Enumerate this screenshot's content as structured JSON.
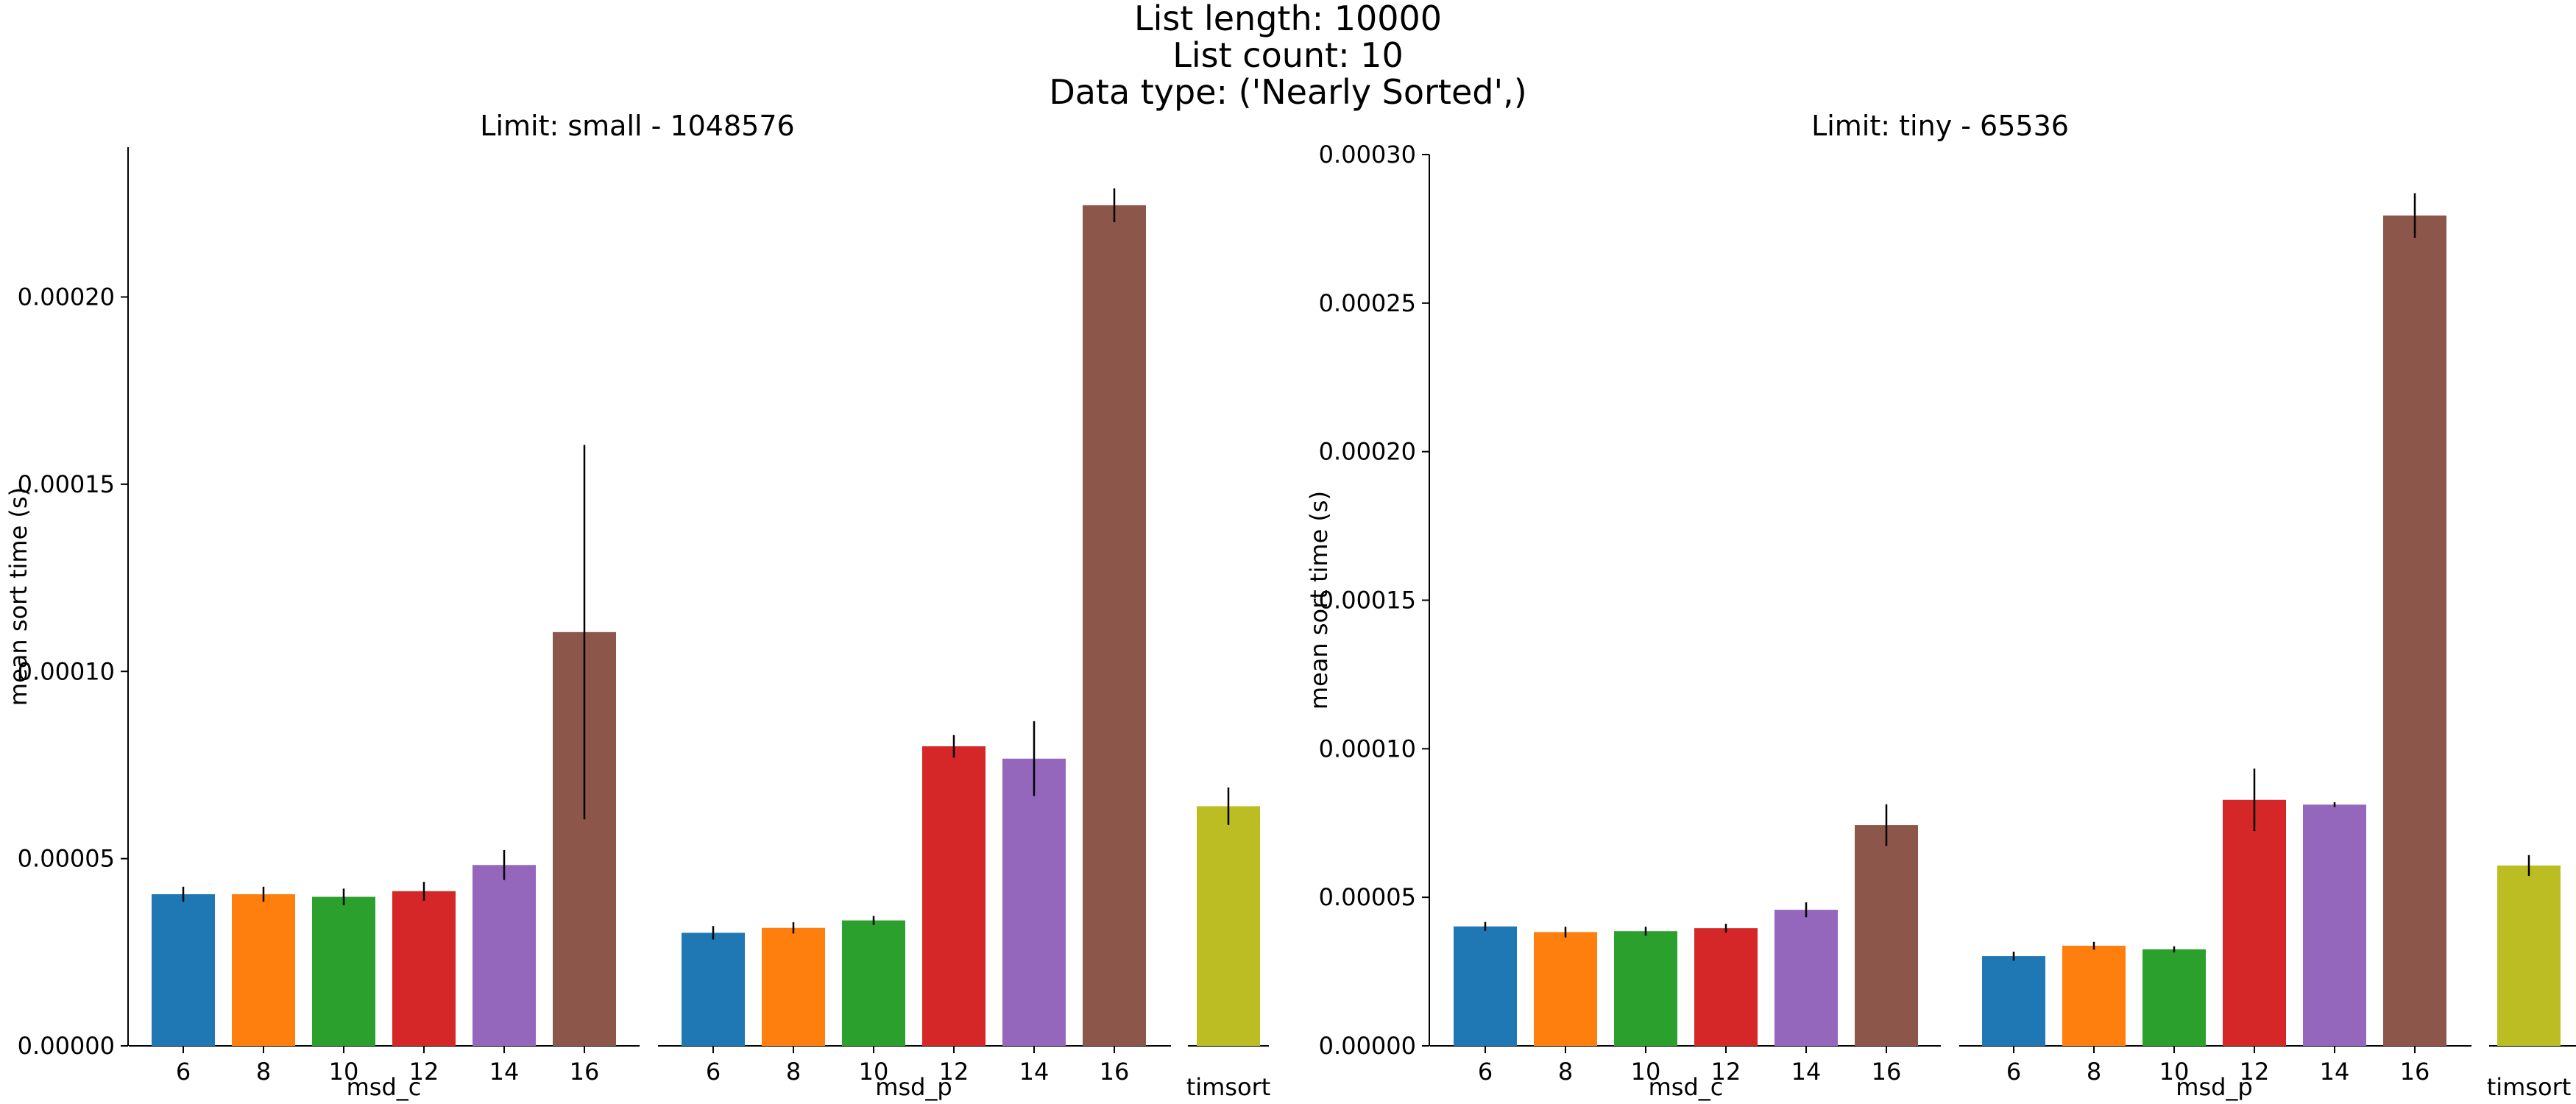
{
  "figure": {
    "title_lines": [
      "List length: 10000",
      "List count: 10",
      "Data type: ('Nearly Sorted',)"
    ]
  },
  "colors": {
    "6": "#1f77b4",
    "8": "#ff7f0e",
    "10": "#2ca02c",
    "12": "#d62728",
    "14": "#9467bd",
    "16": "#8c564b",
    "timsort": "#bcbd22"
  },
  "chart_data": [
    {
      "type": "bar",
      "title": "Limit: small - 1048576",
      "ylabel": "mean sort time (s)",
      "ylim": [
        0,
        0.00024
      ],
      "yticks": [
        0.0,
        5e-05,
        0.0001,
        0.00015,
        0.0002
      ],
      "ytick_labels": [
        "0.00000",
        "0.00005",
        "0.00010",
        "0.00015",
        "0.00020"
      ],
      "groups": [
        {
          "name": "msd_c",
          "categories": [
            "6",
            "8",
            "10",
            "12",
            "14",
            "16"
          ],
          "values": [
            4.05e-05,
            4.05e-05,
            3.98e-05,
            4.13e-05,
            4.83e-05,
            0.0001105
          ],
          "errors": [
            2e-06,
            2e-06,
            2.2e-06,
            2.5e-06,
            4e-06,
            5e-05
          ]
        },
        {
          "name": "msd_p",
          "categories": [
            "6",
            "8",
            "10",
            "12",
            "14",
            "16"
          ],
          "values": [
            3.02e-05,
            3.15e-05,
            3.35e-05,
            8e-05,
            7.67e-05,
            0.0002245
          ],
          "errors": [
            1.8e-06,
            1.5e-06,
            1.2e-06,
            3e-06,
            1e-05,
            4.5e-06
          ]
        },
        {
          "name": "timsort",
          "categories": [
            ""
          ],
          "values": [
            6.4e-05
          ],
          "errors": [
            5e-06
          ]
        }
      ]
    },
    {
      "type": "bar",
      "title": "Limit: tiny - 65536",
      "ylabel": "mean sort time (s)",
      "ylim": [
        0,
        0.0003
      ],
      "yticks": [
        0.0,
        5e-05,
        0.0001,
        0.00015,
        0.0002,
        0.00025,
        0.0003
      ],
      "ytick_labels": [
        "0.00000",
        "0.00005",
        "0.00010",
        "0.00015",
        "0.00020",
        "0.00025",
        "0.00030"
      ],
      "groups": [
        {
          "name": "msd_c",
          "categories": [
            "6",
            "8",
            "10",
            "12",
            "14",
            "16"
          ],
          "values": [
            4.02e-05,
            3.83e-05,
            3.86e-05,
            3.96e-05,
            4.58e-05,
            7.43e-05
          ],
          "errors": [
            1.5e-06,
            1.8e-06,
            1.5e-06,
            1.5e-06,
            2.5e-06,
            7e-06
          ]
        },
        {
          "name": "msd_p",
          "categories": [
            "6",
            "8",
            "10",
            "12",
            "14",
            "16"
          ],
          "values": [
            3.02e-05,
            3.37e-05,
            3.25e-05,
            8.28e-05,
            8.12e-05,
            0.0002795
          ],
          "errors": [
            1.5e-06,
            1.3e-06,
            1e-06,
            1.05e-05,
            8e-07,
            7.5e-06
          ]
        },
        {
          "name": "timsort",
          "categories": [
            ""
          ],
          "values": [
            6.07e-05
          ],
          "errors": [
            3.5e-06
          ]
        }
      ]
    }
  ]
}
